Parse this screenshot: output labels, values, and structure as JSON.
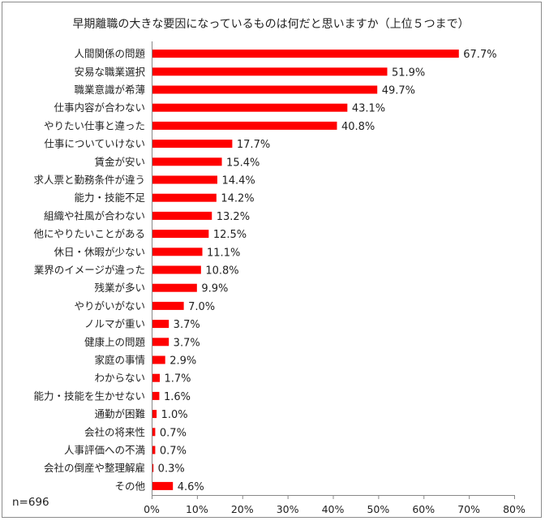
{
  "chart_data": {
    "type": "bar",
    "orientation": "horizontal",
    "title": "早期離職の大きな要因になっているものは何だと思いますか（上位５つまで）",
    "note": "n=696",
    "categories": [
      "人間関係の問題",
      "安易な職業選択",
      "職業意識が希薄",
      "仕事内容が合わない",
      "やりたい仕事と違った",
      "仕事についていけない",
      "賃金が安い",
      "求人票と勤務条件が違う",
      "能力・技能不足",
      "組織や社風が合わない",
      "他にやりたいことがある",
      "休日・休暇が少ない",
      "業界のイメージが違った",
      "残業が多い",
      "やりがいがない",
      "ノルマが重い",
      "健康上の問題",
      "家庭の事情",
      "わからない",
      "能力・技能を生かせない",
      "通勤が困難",
      "会社の将来性",
      "人事評価への不満",
      "会社の倒産や整理解雇",
      "その他"
    ],
    "values": [
      67.7,
      51.9,
      49.7,
      43.1,
      40.8,
      17.7,
      15.4,
      14.4,
      14.2,
      13.2,
      12.5,
      11.1,
      10.8,
      9.9,
      7.0,
      3.7,
      3.7,
      2.9,
      1.7,
      1.6,
      1.0,
      0.7,
      0.7,
      0.3,
      4.6
    ],
    "value_labels": [
      "67.7%",
      "51.9%",
      "49.7%",
      "43.1%",
      "40.8%",
      "17.7%",
      "15.4%",
      "14.4%",
      "14.2%",
      "13.2%",
      "12.5%",
      "11.1%",
      "10.8%",
      "9.9%",
      "7.0%",
      "3.7%",
      "3.7%",
      "2.9%",
      "1.7%",
      "1.6%",
      "1.0%",
      "0.7%",
      "0.7%",
      "0.3%",
      "4.6%"
    ],
    "xlim": [
      0,
      80
    ],
    "xticks": [
      "0%",
      "10%",
      "20%",
      "30%",
      "40%",
      "50%",
      "60%",
      "70%",
      "80%"
    ],
    "bar_color": "#ff0000",
    "grid": false,
    "legend": "none"
  }
}
